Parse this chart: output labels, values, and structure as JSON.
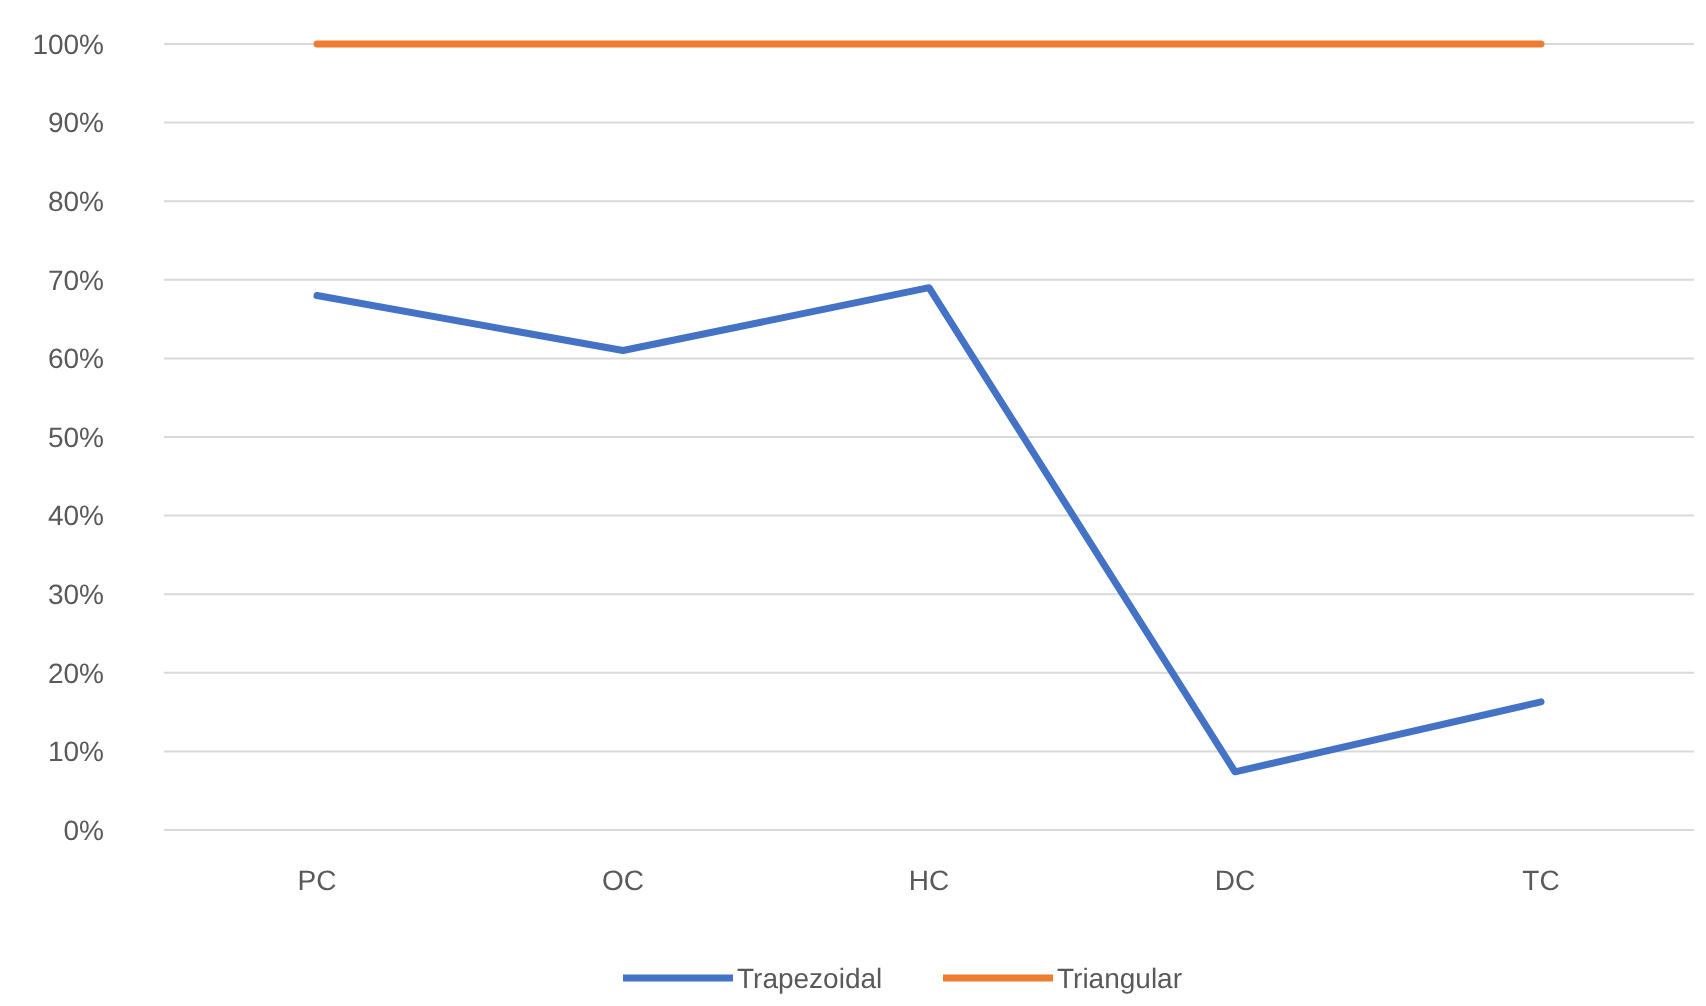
{
  "chart_data": {
    "type": "line",
    "categories": [
      "PC",
      "OC",
      "HC",
      "DC",
      "TC"
    ],
    "series": [
      {
        "name": "Trapezoidal",
        "color": "#4472c4",
        "values": [
          68,
          61,
          69,
          7.4,
          16.3
        ]
      },
      {
        "name": "Triangular",
        "color": "#ed7d31",
        "values": [
          100,
          100,
          100,
          100,
          100
        ]
      }
    ],
    "ylim": [
      0,
      100
    ],
    "yticks": [
      {
        "value": 0,
        "label": "0%"
      },
      {
        "value": 10,
        "label": "10%"
      },
      {
        "value": 20,
        "label": "20%"
      },
      {
        "value": 30,
        "label": "30%"
      },
      {
        "value": 40,
        "label": "40%"
      },
      {
        "value": 50,
        "label": "50%"
      },
      {
        "value": 60,
        "label": "60%"
      },
      {
        "value": 70,
        "label": "70%"
      },
      {
        "value": 80,
        "label": "80%"
      },
      {
        "value": 90,
        "label": "90%"
      },
      {
        "value": 100,
        "label": "100%"
      }
    ],
    "grid": "y",
    "legend": "bottom",
    "marker": "none",
    "line_style": "solid"
  }
}
